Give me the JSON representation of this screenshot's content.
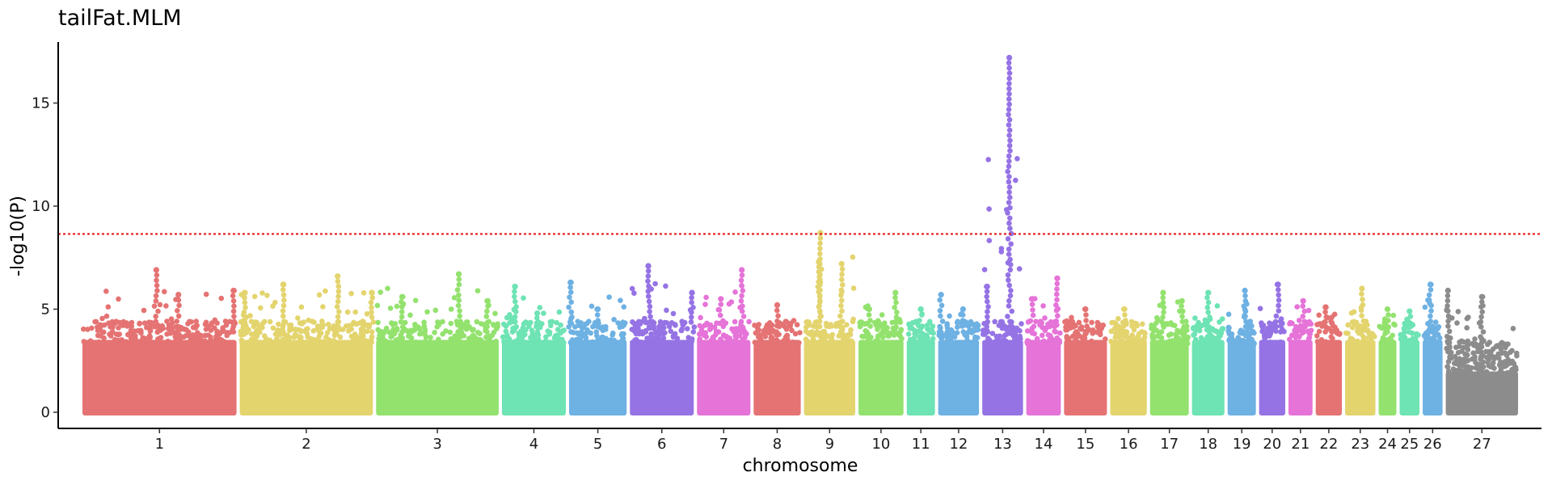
{
  "chart_data": {
    "type": "scatter",
    "subtype": "manhattan",
    "title": "tailFat.MLM",
    "xlabel": "chromosome",
    "ylabel": "-log10(P)",
    "ylim": [
      0,
      18
    ],
    "yticks": [
      0,
      5,
      10,
      15
    ],
    "grid": false,
    "legend": "none",
    "threshold": {
      "value": 8.65,
      "color": "#e41a1c",
      "style": "dotted"
    },
    "chromosomes": [
      {
        "label": "1",
        "color": "#E57373",
        "len": 7.5,
        "max": 6.9,
        "peaks": [
          [
            0.48,
            6.9
          ],
          [
            0.62,
            5.7
          ],
          [
            0.97,
            5.9
          ]
        ]
      },
      {
        "label": "2",
        "color": "#E3D46E",
        "len": 6.5,
        "max": 6.6,
        "peaks": [
          [
            0.05,
            5.8
          ],
          [
            0.33,
            6.2
          ],
          [
            0.73,
            6.6
          ],
          [
            0.98,
            5.8
          ]
        ]
      },
      {
        "label": "3",
        "color": "#93E26E",
        "len": 6.0,
        "max": 6.7,
        "peaks": [
          [
            0.22,
            5.6
          ],
          [
            0.67,
            6.7
          ],
          [
            0.9,
            5.4
          ]
        ]
      },
      {
        "label": "4",
        "color": "#6EE3B4",
        "len": 3.2,
        "max": 6.1,
        "peaks": [
          [
            0.22,
            6.1
          ],
          [
            0.55,
            4.8
          ]
        ]
      },
      {
        "label": "5",
        "color": "#6EB1E3",
        "len": 2.9,
        "max": 6.3,
        "peaks": [
          [
            0.05,
            6.3
          ],
          [
            0.5,
            5.0
          ]
        ]
      },
      {
        "label": "6",
        "color": "#9573E5",
        "len": 3.2,
        "max": 7.1,
        "peaks": [
          [
            0.3,
            7.1
          ],
          [
            0.95,
            5.8
          ]
        ]
      },
      {
        "label": "7",
        "color": "#E573D8",
        "len": 2.7,
        "max": 6.9,
        "peaks": [
          [
            0.82,
            6.9
          ],
          [
            0.45,
            5.5
          ]
        ]
      },
      {
        "label": "8",
        "color": "#E57373",
        "len": 2.4,
        "max": 5.2,
        "peaks": [
          [
            0.5,
            5.2
          ]
        ]
      },
      {
        "label": "9",
        "color": "#E3D46E",
        "len": 2.6,
        "max": 8.7,
        "peaks": [
          [
            0.33,
            8.7
          ],
          [
            0.3,
            7.3
          ],
          [
            0.72,
            7.2
          ]
        ]
      },
      {
        "label": "10",
        "color": "#93E26E",
        "len": 2.3,
        "max": 5.8,
        "peaks": [
          [
            0.8,
            5.8
          ],
          [
            0.25,
            5.0
          ]
        ]
      },
      {
        "label": "11",
        "color": "#6EE3B4",
        "len": 1.5,
        "max": 5.0,
        "peaks": [
          [
            0.5,
            5.0
          ]
        ]
      },
      {
        "label": "12",
        "color": "#6EB1E3",
        "len": 2.1,
        "max": 5.7,
        "peaks": [
          [
            0.1,
            5.7
          ],
          [
            0.6,
            5.0
          ]
        ]
      },
      {
        "label": "13",
        "color": "#9573E5",
        "len": 2.1,
        "max": 17.2,
        "peaks": [
          [
            0.65,
            17.2
          ],
          [
            0.15,
            6.1
          ]
        ]
      },
      {
        "label": "14",
        "color": "#E573D8",
        "len": 1.8,
        "max": 6.5,
        "peaks": [
          [
            0.86,
            6.5
          ],
          [
            0.2,
            5.5
          ]
        ]
      },
      {
        "label": "15",
        "color": "#E57373",
        "len": 2.2,
        "max": 5.0,
        "peaks": [
          [
            0.5,
            5.0
          ]
        ]
      },
      {
        "label": "16",
        "color": "#E3D46E",
        "len": 1.9,
        "max": 5.0,
        "peaks": [
          [
            0.4,
            5.0
          ]
        ]
      },
      {
        "label": "17",
        "color": "#93E26E",
        "len": 2.0,
        "max": 5.8,
        "peaks": [
          [
            0.35,
            5.8
          ],
          [
            0.8,
            5.4
          ]
        ]
      },
      {
        "label": "18",
        "color": "#6EE3B4",
        "len": 1.7,
        "max": 5.8,
        "peaks": [
          [
            0.5,
            5.8
          ]
        ]
      },
      {
        "label": "19",
        "color": "#6EB1E3",
        "len": 1.5,
        "max": 5.9,
        "peaks": [
          [
            0.6,
            5.9
          ]
        ]
      },
      {
        "label": "20",
        "color": "#9573E5",
        "len": 1.4,
        "max": 6.2,
        "peaks": [
          [
            0.7,
            6.2
          ]
        ]
      },
      {
        "label": "21",
        "color": "#E573D8",
        "len": 1.3,
        "max": 5.4,
        "peaks": [
          [
            0.6,
            5.4
          ]
        ]
      },
      {
        "label": "22",
        "color": "#E57373",
        "len": 1.4,
        "max": 5.1,
        "peaks": [
          [
            0.4,
            5.1
          ]
        ]
      },
      {
        "label": "23",
        "color": "#E3D46E",
        "len": 1.6,
        "max": 6.0,
        "peaks": [
          [
            0.55,
            6.0
          ]
        ]
      },
      {
        "label": "24",
        "color": "#93E26E",
        "len": 1.0,
        "max": 5.0,
        "peaks": [
          [
            0.5,
            5.0
          ]
        ]
      },
      {
        "label": "25",
        "color": "#6EE3B4",
        "len": 1.1,
        "max": 4.9,
        "peaks": [
          [
            0.5,
            4.9
          ]
        ]
      },
      {
        "label": "26",
        "color": "#6EB1E3",
        "len": 1.1,
        "max": 6.2,
        "peaks": [
          [
            0.4,
            6.2
          ]
        ]
      },
      {
        "label": "27",
        "color": "#8C8C8C",
        "len": 3.6,
        "max": 5.9,
        "peaks": [
          [
            0.05,
            5.9
          ],
          [
            0.5,
            5.6
          ]
        ],
        "taper": true
      }
    ]
  }
}
